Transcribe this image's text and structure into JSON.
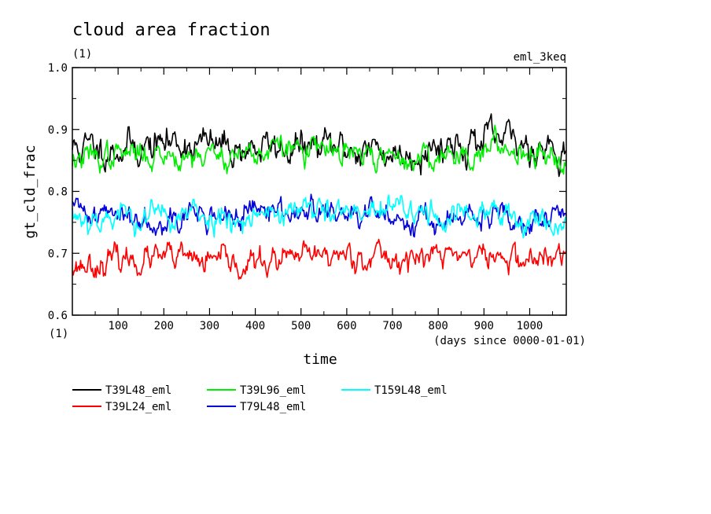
{
  "chart_data": {
    "type": "line",
    "title": "cloud area fraction",
    "subtitle_unit": "(1)",
    "experiment": "eml_3keq",
    "xlabel": "time",
    "xunit": "(days since 0000-01-01)",
    "ylabel": "gt_cld_frac",
    "yunit": "(1)",
    "xlim": [
      0,
      1080
    ],
    "ylim": [
      0.6,
      1.0
    ],
    "xticks": [
      100,
      200,
      300,
      400,
      500,
      600,
      700,
      800,
      900,
      1000
    ],
    "yticks": [
      0.6,
      0.7,
      0.8,
      0.9,
      1.0
    ],
    "ytick_labels": [
      "0.6",
      "0.7",
      "0.8",
      "0.9",
      "1.0"
    ],
    "grid": false,
    "legend_position": "bottom",
    "series": [
      {
        "name": "T39L48_eml",
        "color": "#000000",
        "mean": 0.873,
        "amplitude": 0.014,
        "seed": 11,
        "x": [
          0,
          120,
          240,
          360,
          480,
          600,
          720,
          840,
          960,
          1080
        ],
        "y": [
          0.87,
          0.87,
          0.88,
          0.87,
          0.87,
          0.87,
          0.86,
          0.88,
          0.88,
          0.87
        ]
      },
      {
        "name": "T39L24_eml",
        "color": "#ff0000",
        "mean": 0.69,
        "amplitude": 0.011,
        "seed": 23,
        "x": [
          0,
          120,
          240,
          360,
          480,
          600,
          720,
          840,
          960,
          1080
        ],
        "y": [
          0.68,
          0.69,
          0.69,
          0.68,
          0.69,
          0.7,
          0.69,
          0.7,
          0.69,
          0.69
        ]
      },
      {
        "name": "T39L96_eml",
        "color": "#00ee00",
        "mean": 0.862,
        "amplitude": 0.011,
        "seed": 37,
        "x": [
          0,
          120,
          240,
          360,
          480,
          600,
          720,
          840,
          960,
          1080
        ],
        "y": [
          0.85,
          0.86,
          0.86,
          0.86,
          0.87,
          0.86,
          0.85,
          0.86,
          0.87,
          0.86
        ]
      },
      {
        "name": "T79L48_eml",
        "color": "#0000dd",
        "mean": 0.763,
        "amplitude": 0.011,
        "seed": 41,
        "x": [
          0,
          120,
          240,
          360,
          480,
          600,
          720,
          840,
          960,
          1080
        ],
        "y": [
          0.77,
          0.76,
          0.76,
          0.76,
          0.77,
          0.76,
          0.76,
          0.75,
          0.76,
          0.76
        ]
      },
      {
        "name": "T159L48_eml",
        "color": "#00ffff",
        "mean": 0.76,
        "amplitude": 0.012,
        "seed": 53,
        "x": [
          0,
          120,
          240,
          360,
          480,
          600,
          720,
          840,
          960,
          1080
        ],
        "y": [
          0.76,
          0.76,
          0.76,
          0.76,
          0.77,
          0.76,
          0.77,
          0.76,
          0.76,
          0.75
        ]
      }
    ]
  }
}
